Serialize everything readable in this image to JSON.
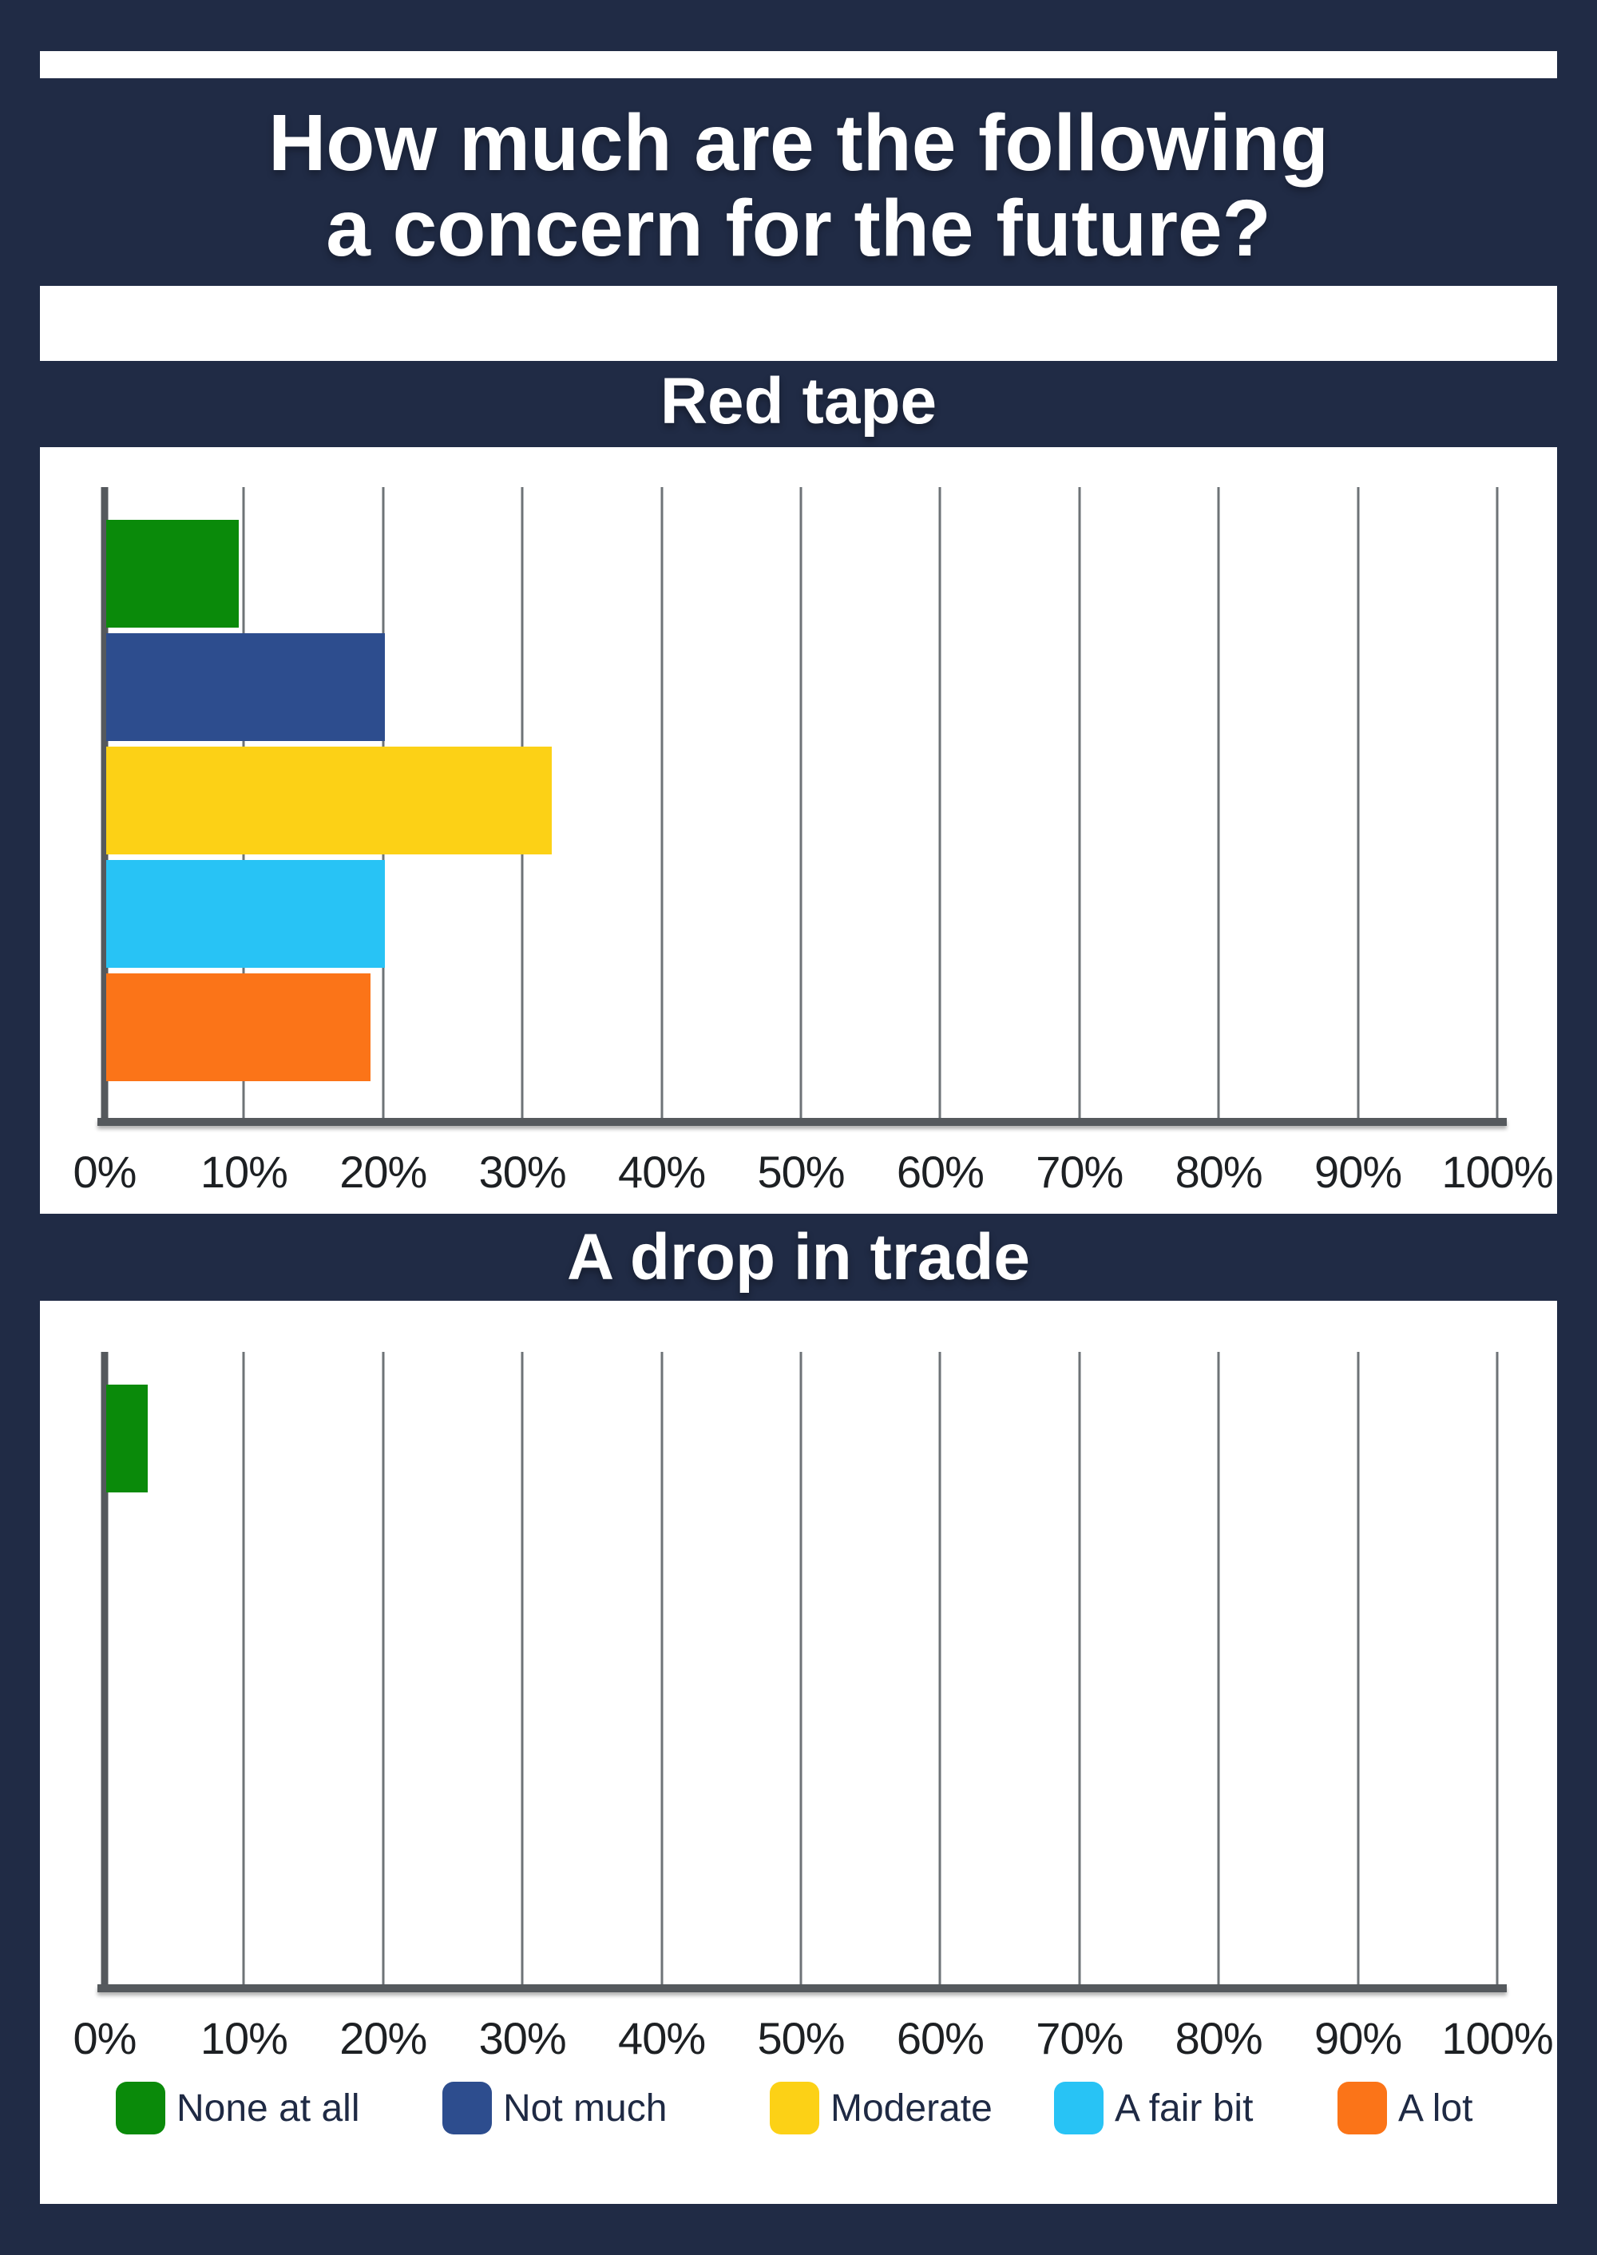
{
  "header": {
    "title_line1": "How much are the following",
    "title_line2": "a concern for the future?"
  },
  "colors": {
    "background": "#202b45",
    "panel": "#ffffff",
    "heading_text": "#ffffff",
    "axis_line": "#55595d",
    "gridline": "#6e7377",
    "tick_text": "#1d2023",
    "legend_text": "#1f2a44",
    "green": "#0a8a0a",
    "dark_blue": "#2d4d8e",
    "yellow": "#fcd116",
    "cyan": "#28c3f5",
    "orange": "#fb7418"
  },
  "legend": {
    "items": [
      {
        "label": "None at all",
        "color": "#0a8a0a"
      },
      {
        "label": "Not much",
        "color": "#2d4d8e"
      },
      {
        "label": "Moderate",
        "color": "#fcd116"
      },
      {
        "label": "A fair bit",
        "color": "#28c3f5"
      },
      {
        "label": "A lot",
        "color": "#fb7418"
      }
    ]
  },
  "chart_data": [
    {
      "type": "bar",
      "orientation": "horizontal",
      "title": "Red tape",
      "categories": [
        "None at all",
        "Not much",
        "Moderate",
        "A fair bit",
        "A lot"
      ],
      "values": [
        9.5,
        20,
        32,
        20,
        19
      ],
      "colors": [
        "#0a8a0a",
        "#2d4d8e",
        "#fcd116",
        "#28c3f5",
        "#fb7418"
      ],
      "xlim": [
        0,
        100
      ],
      "x_tick_labels": [
        "0%",
        "10%",
        "20%",
        "30%",
        "40%",
        "50%",
        "60%",
        "70%",
        "80%",
        "90%",
        "100%"
      ],
      "grid": true,
      "legend_position": "bottom"
    },
    {
      "type": "bar",
      "orientation": "horizontal",
      "title": "A drop in trade",
      "categories": [
        "None at all",
        "Not much",
        "Moderate",
        "A fair bit",
        "A lot"
      ],
      "values": [
        3,
        0,
        0,
        0,
        0
      ],
      "colors": [
        "#0a8a0a",
        "#2d4d8e",
        "#fcd116",
        "#28c3f5",
        "#fb7418"
      ],
      "xlim": [
        0,
        100
      ],
      "x_tick_labels": [
        "0%",
        "10%",
        "20%",
        "30%",
        "40%",
        "50%",
        "60%",
        "70%",
        "80%",
        "90%",
        "100%"
      ],
      "grid": true,
      "legend_position": "bottom"
    }
  ]
}
